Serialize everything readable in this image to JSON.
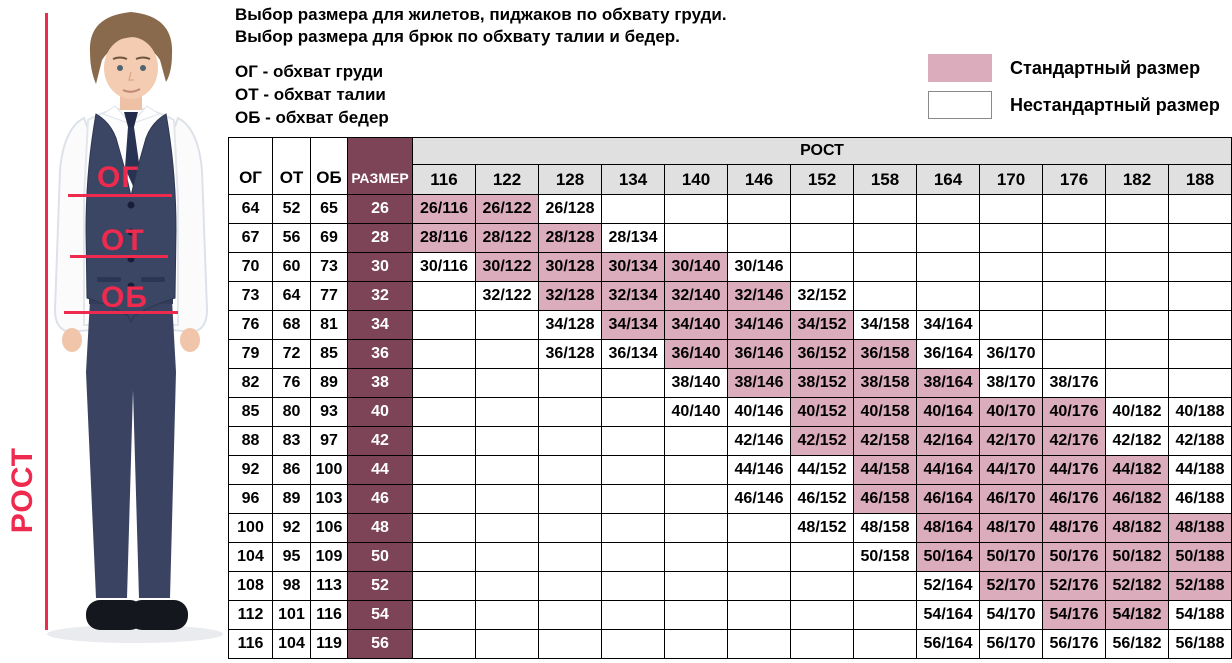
{
  "title": {
    "line1": "Выбор размера для жилетов, пиджаков по обхвату груди.",
    "line2": "Выбор размера для брюк по обхвату талии и бедер."
  },
  "abbreviations": {
    "chest": "ОГ - обхват груди",
    "waist": "ОТ - обхват талии",
    "hips": "ОБ - обхват бедер"
  },
  "legend": {
    "standard": "Стандартный размер",
    "nonstandard": "Нестандартный размер"
  },
  "figure_labels": {
    "chest": "ОГ",
    "waist": "ОТ",
    "hips": "ОБ",
    "height": "РОСТ"
  },
  "colors": {
    "standard-pink": "#dbadbc",
    "size-maroon": "#7d4457",
    "header-gray": "#e0e0e0",
    "accent-red": "#ee2b4e"
  },
  "table": {
    "corner_headers": [
      "ОГ",
      "ОТ",
      "ОБ",
      "РАЗМЕР"
    ],
    "group_header": "РОСТ",
    "heights": [
      "116",
      "122",
      "128",
      "134",
      "140",
      "146",
      "152",
      "158",
      "164",
      "170",
      "176",
      "182",
      "188"
    ],
    "rows": [
      {
        "og": "64",
        "ot": "52",
        "ob": "65",
        "size": "26",
        "cells": [
          {
            "v": "26/116",
            "std": true
          },
          {
            "v": "26/122",
            "std": true
          },
          {
            "v": "26/128",
            "std": false
          },
          null,
          null,
          null,
          null,
          null,
          null,
          null,
          null,
          null,
          null
        ]
      },
      {
        "og": "67",
        "ot": "56",
        "ob": "69",
        "size": "28",
        "cells": [
          {
            "v": "28/116",
            "std": true
          },
          {
            "v": "28/122",
            "std": true
          },
          {
            "v": "28/128",
            "std": true
          },
          {
            "v": "28/134",
            "std": false
          },
          null,
          null,
          null,
          null,
          null,
          null,
          null,
          null,
          null
        ]
      },
      {
        "og": "70",
        "ot": "60",
        "ob": "73",
        "size": "30",
        "cells": [
          {
            "v": "30/116",
            "std": false
          },
          {
            "v": "30/122",
            "std": true
          },
          {
            "v": "30/128",
            "std": true
          },
          {
            "v": "30/134",
            "std": true
          },
          {
            "v": "30/140",
            "std": true
          },
          {
            "v": "30/146",
            "std": false
          },
          null,
          null,
          null,
          null,
          null,
          null,
          null
        ]
      },
      {
        "og": "73",
        "ot": "64",
        "ob": "77",
        "size": "32",
        "cells": [
          null,
          {
            "v": "32/122",
            "std": false
          },
          {
            "v": "32/128",
            "std": true
          },
          {
            "v": "32/134",
            "std": true
          },
          {
            "v": "32/140",
            "std": true
          },
          {
            "v": "32/146",
            "std": true
          },
          {
            "v": "32/152",
            "std": false
          },
          null,
          null,
          null,
          null,
          null,
          null
        ]
      },
      {
        "og": "76",
        "ot": "68",
        "ob": "81",
        "size": "34",
        "cells": [
          null,
          null,
          {
            "v": "34/128",
            "std": false
          },
          {
            "v": "34/134",
            "std": true
          },
          {
            "v": "34/140",
            "std": true
          },
          {
            "v": "34/146",
            "std": true
          },
          {
            "v": "34/152",
            "std": true
          },
          {
            "v": "34/158",
            "std": false
          },
          {
            "v": "34/164",
            "std": false
          },
          null,
          null,
          null,
          null
        ]
      },
      {
        "og": "79",
        "ot": "72",
        "ob": "85",
        "size": "36",
        "cells": [
          null,
          null,
          {
            "v": "36/128",
            "std": false
          },
          {
            "v": "36/134",
            "std": false
          },
          {
            "v": "36/140",
            "std": true
          },
          {
            "v": "36/146",
            "std": true
          },
          {
            "v": "36/152",
            "std": true
          },
          {
            "v": "36/158",
            "std": true
          },
          {
            "v": "36/164",
            "std": false
          },
          {
            "v": "36/170",
            "std": false
          },
          null,
          null,
          null
        ]
      },
      {
        "og": "82",
        "ot": "76",
        "ob": "89",
        "size": "38",
        "cells": [
          null,
          null,
          null,
          null,
          {
            "v": "38/140",
            "std": false
          },
          {
            "v": "38/146",
            "std": true
          },
          {
            "v": "38/152",
            "std": true
          },
          {
            "v": "38/158",
            "std": true
          },
          {
            "v": "38/164",
            "std": true
          },
          {
            "v": "38/170",
            "std": false
          },
          {
            "v": "38/176",
            "std": false
          },
          null,
          null
        ]
      },
      {
        "og": "85",
        "ot": "80",
        "ob": "93",
        "size": "40",
        "cells": [
          null,
          null,
          null,
          null,
          {
            "v": "40/140",
            "std": false
          },
          {
            "v": "40/146",
            "std": false
          },
          {
            "v": "40/152",
            "std": true
          },
          {
            "v": "40/158",
            "std": true
          },
          {
            "v": "40/164",
            "std": true
          },
          {
            "v": "40/170",
            "std": true
          },
          {
            "v": "40/176",
            "std": true
          },
          {
            "v": "40/182",
            "std": false
          },
          {
            "v": "40/188",
            "std": false
          }
        ]
      },
      {
        "og": "88",
        "ot": "83",
        "ob": "97",
        "size": "42",
        "cells": [
          null,
          null,
          null,
          null,
          null,
          {
            "v": "42/146",
            "std": false
          },
          {
            "v": "42/152",
            "std": true
          },
          {
            "v": "42/158",
            "std": true
          },
          {
            "v": "42/164",
            "std": true
          },
          {
            "v": "42/170",
            "std": true
          },
          {
            "v": "42/176",
            "std": true
          },
          {
            "v": "42/182",
            "std": false
          },
          {
            "v": "42/188",
            "std": false
          }
        ]
      },
      {
        "og": "92",
        "ot": "86",
        "ob": "100",
        "size": "44",
        "cells": [
          null,
          null,
          null,
          null,
          null,
          {
            "v": "44/146",
            "std": false
          },
          {
            "v": "44/152",
            "std": false
          },
          {
            "v": "44/158",
            "std": true
          },
          {
            "v": "44/164",
            "std": true
          },
          {
            "v": "44/170",
            "std": true
          },
          {
            "v": "44/176",
            "std": true
          },
          {
            "v": "44/182",
            "std": true
          },
          {
            "v": "44/188",
            "std": false
          }
        ]
      },
      {
        "og": "96",
        "ot": "89",
        "ob": "103",
        "size": "46",
        "cells": [
          null,
          null,
          null,
          null,
          null,
          {
            "v": "46/146",
            "std": false
          },
          {
            "v": "46/152",
            "std": false
          },
          {
            "v": "46/158",
            "std": true
          },
          {
            "v": "46/164",
            "std": true
          },
          {
            "v": "46/170",
            "std": true
          },
          {
            "v": "46/176",
            "std": true
          },
          {
            "v": "46/182",
            "std": true
          },
          {
            "v": "46/188",
            "std": false
          }
        ]
      },
      {
        "og": "100",
        "ot": "92",
        "ob": "106",
        "size": "48",
        "cells": [
          null,
          null,
          null,
          null,
          null,
          null,
          {
            "v": "48/152",
            "std": false
          },
          {
            "v": "48/158",
            "std": false
          },
          {
            "v": "48/164",
            "std": true
          },
          {
            "v": "48/170",
            "std": true
          },
          {
            "v": "48/176",
            "std": true
          },
          {
            "v": "48/182",
            "std": true
          },
          {
            "v": "48/188",
            "std": true
          }
        ]
      },
      {
        "og": "104",
        "ot": "95",
        "ob": "109",
        "size": "50",
        "cells": [
          null,
          null,
          null,
          null,
          null,
          null,
          null,
          {
            "v": "50/158",
            "std": false
          },
          {
            "v": "50/164",
            "std": true
          },
          {
            "v": "50/170",
            "std": true
          },
          {
            "v": "50/176",
            "std": true
          },
          {
            "v": "50/182",
            "std": true
          },
          {
            "v": "50/188",
            "std": true
          }
        ]
      },
      {
        "og": "108",
        "ot": "98",
        "ob": "113",
        "size": "52",
        "cells": [
          null,
          null,
          null,
          null,
          null,
          null,
          null,
          null,
          {
            "v": "52/164",
            "std": false
          },
          {
            "v": "52/170",
            "std": true
          },
          {
            "v": "52/176",
            "std": true
          },
          {
            "v": "52/182",
            "std": true
          },
          {
            "v": "52/188",
            "std": true
          }
        ]
      },
      {
        "og": "112",
        "ot": "101",
        "ob": "116",
        "size": "54",
        "cells": [
          null,
          null,
          null,
          null,
          null,
          null,
          null,
          null,
          {
            "v": "54/164",
            "std": false
          },
          {
            "v": "54/170",
            "std": false
          },
          {
            "v": "54/176",
            "std": true
          },
          {
            "v": "54/182",
            "std": true
          },
          {
            "v": "54/188",
            "std": false
          }
        ]
      },
      {
        "og": "116",
        "ot": "104",
        "ob": "119",
        "size": "56",
        "cells": [
          null,
          null,
          null,
          null,
          null,
          null,
          null,
          null,
          {
            "v": "56/164",
            "std": false
          },
          {
            "v": "56/170",
            "std": false
          },
          {
            "v": "56/176",
            "std": false
          },
          {
            "v": "56/182",
            "std": false
          },
          {
            "v": "56/188",
            "std": false
          }
        ]
      }
    ]
  }
}
